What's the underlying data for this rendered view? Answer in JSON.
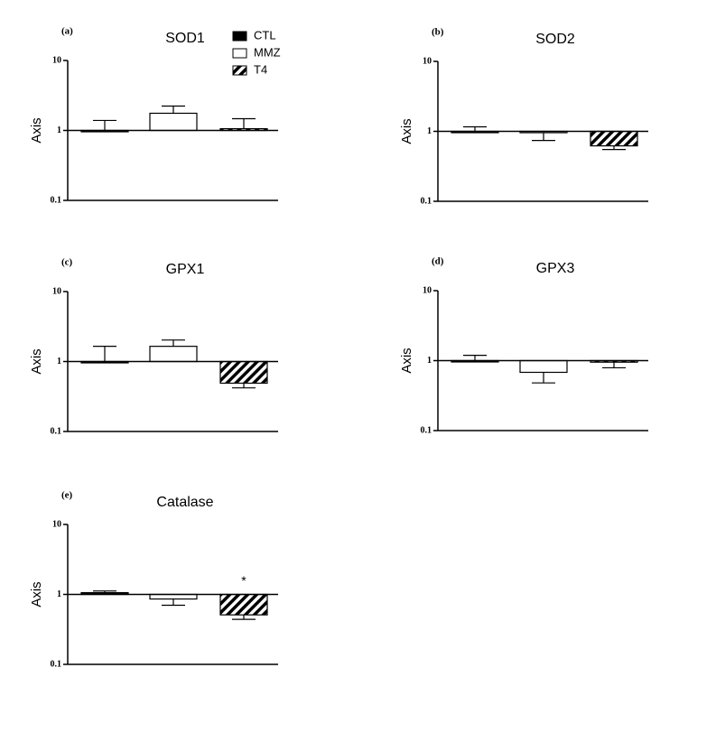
{
  "chart_data": [
    {
      "type": "bar",
      "panel_label": "(a)",
      "title": "SOD1",
      "ylabel": "Axis",
      "log_scale": true,
      "ylim": [
        0.1,
        10
      ],
      "yticks": [
        0.1,
        1,
        10
      ],
      "baseline": 1,
      "legend": true,
      "series": [
        {
          "name": "CTL",
          "color": "#000000",
          "values": [
            1.0
          ],
          "errors": [
            0.39
          ]
        },
        {
          "name": "MMZ",
          "color": "#ffffff",
          "values": [
            1.76
          ],
          "errors": [
            0.47
          ]
        },
        {
          "name": "T4",
          "color": "#000000",
          "pattern": "hatch",
          "values": [
            1.06
          ],
          "errors": [
            0.41
          ]
        }
      ]
    },
    {
      "type": "bar",
      "panel_label": "(b)",
      "title": "SOD2",
      "ylabel": "Axis",
      "log_scale": true,
      "ylim": [
        0.1,
        10
      ],
      "yticks": [
        0.1,
        1,
        10
      ],
      "baseline": 1,
      "legend": false,
      "series": [
        {
          "color": "#000000",
          "values": [
            1.0
          ],
          "errors": [
            0.16
          ]
        },
        {
          "color": "#ffffff",
          "values": [
            0.97
          ],
          "errors": [
            0.23
          ]
        },
        {
          "color": "#000000",
          "pattern": "hatch",
          "values": [
            0.62
          ],
          "errors": [
            0.07
          ]
        }
      ]
    },
    {
      "type": "bar",
      "panel_label": "(c)",
      "title": "GPX1",
      "ylabel": "Axis",
      "log_scale": true,
      "ylim": [
        0.1,
        10
      ],
      "yticks": [
        0.1,
        1,
        10
      ],
      "baseline": 1,
      "legend": false,
      "series": [
        {
          "color": "#000000",
          "values": [
            1.0
          ],
          "errors": [
            0.65
          ]
        },
        {
          "color": "#ffffff",
          "values": [
            1.65
          ],
          "errors": [
            0.38
          ]
        },
        {
          "color": "#000000",
          "pattern": "hatch",
          "values": [
            0.49
          ],
          "errors": [
            0.07
          ]
        }
      ]
    },
    {
      "type": "bar",
      "panel_label": "(d)",
      "title": "GPX3",
      "ylabel": "Axis",
      "log_scale": true,
      "ylim": [
        0.1,
        10
      ],
      "yticks": [
        0.1,
        1,
        10
      ],
      "baseline": 1,
      "legend": false,
      "series": [
        {
          "color": "#000000",
          "values": [
            1.0
          ],
          "errors": [
            0.19
          ]
        },
        {
          "color": "#ffffff",
          "values": [
            0.68
          ],
          "errors": [
            0.2
          ]
        },
        {
          "color": "#000000",
          "pattern": "hatch",
          "values": [
            0.95
          ],
          "errors": [
            0.16
          ]
        }
      ]
    },
    {
      "type": "bar",
      "panel_label": "(e)",
      "title": "Catalase",
      "ylabel": "Axis",
      "log_scale": true,
      "ylim": [
        0.1,
        10
      ],
      "yticks": [
        0.1,
        1,
        10
      ],
      "baseline": 1,
      "legend": false,
      "annotations": [
        {
          "text": "*",
          "series": 2
        }
      ],
      "series": [
        {
          "color": "#000000",
          "values": [
            1.06
          ],
          "errors": [
            0.06
          ]
        },
        {
          "color": "#ffffff",
          "values": [
            0.86
          ],
          "errors": [
            0.16
          ]
        },
        {
          "color": "#000000",
          "pattern": "hatch",
          "values": [
            0.51
          ],
          "errors": [
            0.07
          ]
        }
      ]
    }
  ]
}
